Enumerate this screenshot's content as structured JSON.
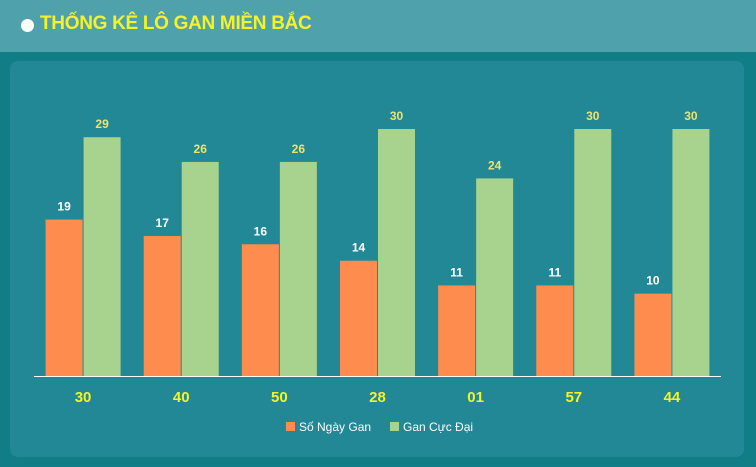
{
  "page": {
    "title": "THỐNG KÊ LÔ GAN MIỀN BẮC"
  },
  "colors": {
    "series_1": "#ff8c4f",
    "series_2": "#a8d38e",
    "category_label": "#f5f227",
    "data_label_1": "#ffffff",
    "data_label_2": "#f2e26a"
  },
  "chart_data": {
    "type": "bar",
    "categories": [
      "30",
      "40",
      "50",
      "28",
      "01",
      "57",
      "44"
    ],
    "series": [
      {
        "name": "Số Ngày Gan",
        "values": [
          19,
          17,
          16,
          14,
          11,
          11,
          10
        ]
      },
      {
        "name": "Gan Cực Đại",
        "values": [
          29,
          26,
          26,
          30,
          24,
          30,
          30
        ]
      }
    ],
    "ylim": [
      0,
      30
    ],
    "grid": false,
    "legend": "bottom-center"
  }
}
